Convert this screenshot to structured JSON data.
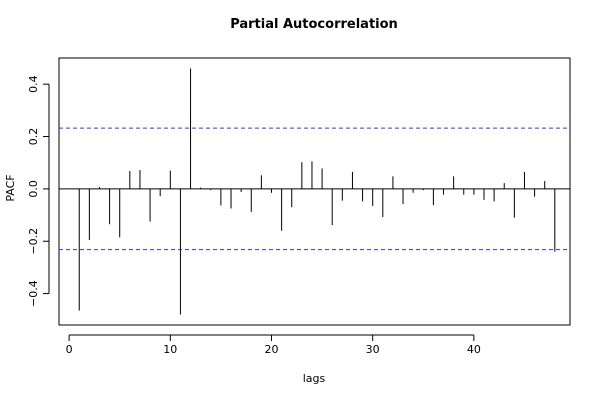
{
  "chart_data": {
    "type": "bar",
    "title": "Partial Autocorrelation",
    "xlabel": "lags",
    "ylabel": "PACF",
    "xlim": [
      -1,
      49.5
    ],
    "ylim": [
      -0.52,
      0.5
    ],
    "x_ticks": [
      0,
      10,
      20,
      30,
      40
    ],
    "y_ticks": [
      -0.4,
      -0.2,
      0.0,
      0.2,
      0.4
    ],
    "y_tick_labels": [
      "−0.4",
      "−0.2",
      "0.0",
      "0.2",
      "0.4"
    ],
    "confidence_bound": 0.232,
    "confidence_line_color": "#3333ff",
    "bar_color": "#000000",
    "zero_line": true,
    "grid": false,
    "lags": [
      1,
      2,
      3,
      4,
      5,
      6,
      7,
      8,
      9,
      10,
      11,
      12,
      13,
      14,
      15,
      16,
      17,
      18,
      19,
      20,
      21,
      22,
      23,
      24,
      25,
      26,
      27,
      28,
      29,
      30,
      31,
      32,
      33,
      34,
      35,
      36,
      37,
      38,
      39,
      40,
      41,
      42,
      43,
      44,
      45,
      46,
      47,
      48
    ],
    "values": [
      -0.465,
      -0.195,
      0.007,
      -0.135,
      -0.185,
      0.068,
      0.072,
      -0.125,
      -0.028,
      0.07,
      -0.48,
      0.46,
      0.005,
      -0.005,
      -0.063,
      -0.075,
      -0.012,
      -0.088,
      0.052,
      -0.015,
      -0.16,
      -0.07,
      0.102,
      0.105,
      0.078,
      -0.138,
      -0.045,
      0.065,
      -0.048,
      -0.065,
      -0.108,
      0.048,
      -0.058,
      -0.015,
      -0.005,
      -0.062,
      -0.022,
      0.048,
      -0.022,
      -0.022,
      -0.042,
      -0.048,
      0.022,
      -0.11,
      0.065,
      -0.03,
      0.03,
      -0.24
    ]
  }
}
